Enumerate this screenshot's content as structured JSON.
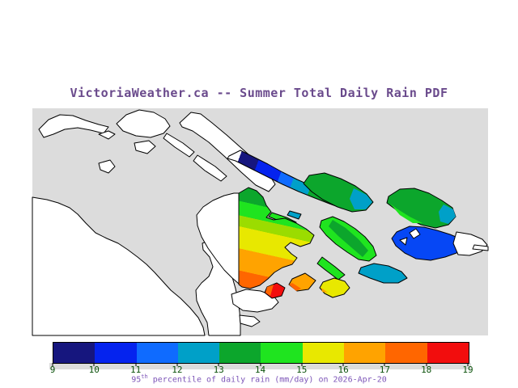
{
  "title": {
    "text": "VictoriaWeather.ca -- Summer Total Daily Rain PDF",
    "color": "#6A4A8C"
  },
  "map": {
    "palette": {
      "water": "#DCDCDC",
      "land": "#FFFFFF",
      "outline": "#000000",
      "navy": "#16167E",
      "blue": "#0523EE",
      "azure": "#0F6BFF",
      "teal": "#00A0C8",
      "green": "#0CA62C",
      "bright_green": "#1FE41F",
      "yellow_green": "#9BDC00",
      "yellow": "#E8E800",
      "orange": "#FFA300",
      "dark_orange": "#FF6600",
      "red": "#F20D0D",
      "bright_blue": "#0647F5"
    }
  },
  "colorbar": {
    "segment_colors": [
      "#16167E",
      "#0523EE",
      "#0F6BFF",
      "#00A0C8",
      "#0CA62C",
      "#1FE41F",
      "#E8E800",
      "#FFA300",
      "#FF6600",
      "#F20D0D"
    ],
    "tick_labels": [
      "9",
      "10",
      "11",
      "12",
      "13",
      "14",
      "15",
      "16",
      "17",
      "18",
      "19"
    ],
    "tick_color": "#0B520B",
    "strip_color": "#DCDCDC",
    "caption_base": "95",
    "caption_sup": "th",
    "caption_rest": " percentile of daily rain (mm/day) on 2026-Apr-20",
    "caption_color": "#7D55B8"
  },
  "chart_data": {
    "type": "heatmap",
    "title": "VictoriaWeather.ca -- Summer Total Daily Rain PDF",
    "colorbar_label": "95th percentile of daily rain (mm/day) on 2026-Apr-20",
    "scale": {
      "min": 9,
      "max": 19,
      "step": 1,
      "units": "mm/day",
      "ticks": [
        9,
        10,
        11,
        12,
        13,
        14,
        15,
        16,
        17,
        18,
        19
      ],
      "colors": [
        "#16167E",
        "#0523EE",
        "#0F6BFF",
        "#00A0C8",
        "#0CA62C",
        "#1FE41F",
        "#E8E800",
        "#FFA300",
        "#FF6600",
        "#F20D0D"
      ]
    },
    "legend_position": "bottom",
    "map_notes": "Gray = water; white outlined shapes = land outside data domain; colored islands = rain values; sharp vertical data-domain edge on the large central island",
    "regions": [
      {
        "name": "northwest-long-island",
        "values_mm_day": [
          9,
          13
        ],
        "note": "gradient navy NW tip to green SE end"
      },
      {
        "name": "central-north-green-island",
        "values_mm_day": [
          13,
          14
        ]
      },
      {
        "name": "east-green-island",
        "values_mm_day": [
          12,
          14
        ],
        "note": "teal patches ~12"
      },
      {
        "name": "south-central-green-island",
        "values_mm_day": [
          13,
          14
        ]
      },
      {
        "name": "southeast-bright-blue-island",
        "values_mm_day": [
          10,
          11
        ]
      },
      {
        "name": "central-large-island-east-half",
        "values_mm_day": [
          13,
          17
        ],
        "note": "green north grading to orange south"
      },
      {
        "name": "teal-channel-islet",
        "values_mm_day": [
          12,
          13
        ]
      },
      {
        "name": "small-red-islet",
        "values_mm_day": [
          18,
          19
        ]
      },
      {
        "name": "small-orange-islet",
        "values_mm_day": [
          16,
          17
        ]
      },
      {
        "name": "small-yellow-islet",
        "values_mm_day": [
          15,
          16
        ]
      }
    ]
  }
}
